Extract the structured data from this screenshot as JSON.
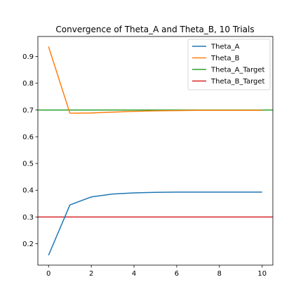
{
  "chart_data": {
    "type": "line",
    "title": "Convergence of Theta_A and Theta_B, 10 Trials",
    "xlabel": "",
    "ylabel": "",
    "xlim": [
      -0.5,
      10.5
    ],
    "ylim": [
      0.12,
      0.975
    ],
    "x_ticks": [
      0,
      2,
      4,
      6,
      8,
      10
    ],
    "y_ticks": [
      0.2,
      0.3,
      0.4,
      0.5,
      0.6,
      0.7,
      0.8,
      0.9
    ],
    "grid": false,
    "legend_position": "top-right",
    "x": [
      0,
      1,
      2,
      3,
      4,
      5,
      6,
      7,
      8,
      9,
      10
    ],
    "series": [
      {
        "name": "Theta_A",
        "color": "#1f77b4",
        "values": [
          0.157,
          0.345,
          0.375,
          0.386,
          0.39,
          0.392,
          0.393,
          0.393,
          0.393,
          0.393,
          0.393
        ]
      },
      {
        "name": "Theta_B",
        "color": "#ff7f0e",
        "values": [
          0.937,
          0.688,
          0.689,
          0.692,
          0.695,
          0.697,
          0.698,
          0.699,
          0.699,
          0.699,
          0.699
        ]
      }
    ],
    "hlines": [
      {
        "name": "Theta_A_Target",
        "color": "#2ca02c",
        "value": 0.7
      },
      {
        "name": "Theta_B_Target",
        "color": "#d62728",
        "value": 0.3
      }
    ]
  }
}
